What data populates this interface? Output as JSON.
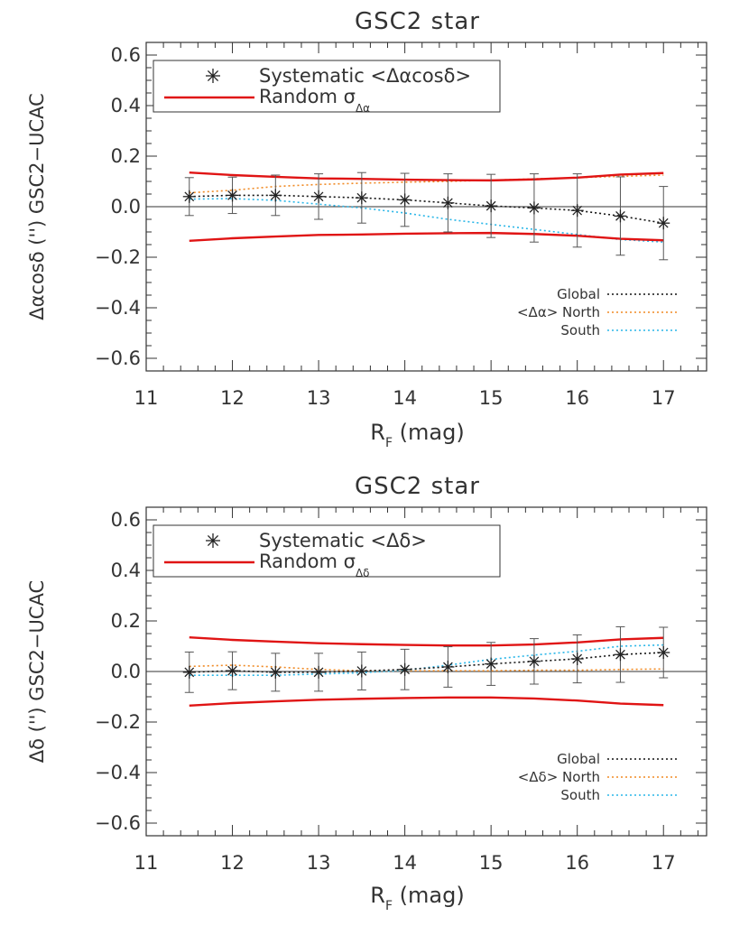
{
  "colors": {
    "frame": "#333333",
    "systematic": "#222222",
    "random": "#e01414",
    "global": "#111111",
    "north": "#f08a24",
    "south": "#29b6e8"
  },
  "chart_data": [
    {
      "type": "line",
      "title": "GSC2 star",
      "xlabel_main": "R",
      "xlabel_sub": "F",
      "xlabel_unit": "(mag)",
      "ylabel": "Δαcosδ ('') GSC2−UCAC",
      "xlim": [
        11,
        17.5
      ],
      "ylim": [
        -0.65,
        0.65
      ],
      "xticks": [
        "11",
        "12",
        "13",
        "14",
        "15",
        "16",
        "17"
      ],
      "yticks": [
        "0.6",
        "0.4",
        "0.2",
        "0.0",
        "−0.2",
        "−0.4",
        "−0.6"
      ],
      "legend_top": {
        "systematic_label": "Systematic <Δαcosδ>",
        "random_label": "Random σ",
        "random_sub": "Δα"
      },
      "legend_bottom": {
        "global": "Global",
        "north": "<Δα> North",
        "south": "South"
      },
      "x": [
        11.5,
        12.0,
        12.5,
        13.0,
        13.5,
        14.0,
        14.5,
        15.0,
        15.5,
        16.0,
        16.5,
        17.0
      ],
      "series": [
        {
          "name": "Systematic <Δαcosδ>",
          "values": [
            0.04,
            0.045,
            0.045,
            0.04,
            0.035,
            0.027,
            0.015,
            0.003,
            -0.005,
            -0.015,
            -0.037,
            -0.065
          ],
          "errors": [
            0.075,
            0.072,
            0.08,
            0.09,
            0.1,
            0.105,
            0.115,
            0.125,
            0.135,
            0.145,
            0.155,
            0.145
          ]
        },
        {
          "name": "Random σ",
          "values": [
            0.135,
            0.125,
            0.118,
            0.112,
            0.11,
            0.107,
            0.105,
            0.104,
            0.108,
            0.115,
            0.127,
            0.133
          ]
        },
        {
          "name": "Global",
          "values": [
            0.04,
            0.045,
            0.045,
            0.04,
            0.035,
            0.027,
            0.015,
            0.003,
            -0.005,
            -0.015,
            -0.037,
            -0.065
          ]
        },
        {
          "name": "<Δα> North",
          "values": [
            0.055,
            0.065,
            0.08,
            0.088,
            0.093,
            0.097,
            0.1,
            0.105,
            0.11,
            0.115,
            0.12,
            0.125
          ]
        },
        {
          "name": "South",
          "values": [
            0.03,
            0.032,
            0.025,
            0.01,
            -0.005,
            -0.025,
            -0.05,
            -0.07,
            -0.09,
            -0.11,
            -0.13,
            -0.14
          ]
        }
      ]
    },
    {
      "type": "line",
      "title": "GSC2 star",
      "xlabel_main": "R",
      "xlabel_sub": "F",
      "xlabel_unit": "(mag)",
      "ylabel": "Δδ ('') GSC2−UCAC",
      "xlim": [
        11,
        17.5
      ],
      "ylim": [
        -0.65,
        0.65
      ],
      "xticks": [
        "11",
        "12",
        "13",
        "14",
        "15",
        "16",
        "17"
      ],
      "yticks": [
        "0.6",
        "0.4",
        "0.2",
        "0.0",
        "−0.2",
        "−0.4",
        "−0.6"
      ],
      "legend_top": {
        "systematic_label": "Systematic <Δδ>",
        "random_label": "Random σ",
        "random_sub": "Δδ"
      },
      "legend_bottom": {
        "global": "Global",
        "north": "<Δδ> North",
        "south": "South"
      },
      "x": [
        11.5,
        12.0,
        12.5,
        13.0,
        13.5,
        14.0,
        14.5,
        15.0,
        15.5,
        16.0,
        16.5,
        17.0
      ],
      "series": [
        {
          "name": "Systematic <Δδ>",
          "values": [
            -0.003,
            0.003,
            -0.003,
            -0.003,
            0.002,
            0.008,
            0.018,
            0.03,
            0.04,
            0.05,
            0.067,
            0.075
          ],
          "errors": [
            0.08,
            0.075,
            0.075,
            0.075,
            0.075,
            0.08,
            0.08,
            0.085,
            0.09,
            0.095,
            0.11,
            0.1
          ]
        },
        {
          "name": "Random σ",
          "values": [
            0.135,
            0.125,
            0.118,
            0.112,
            0.108,
            0.105,
            0.103,
            0.103,
            0.107,
            0.115,
            0.127,
            0.133
          ]
        },
        {
          "name": "Global",
          "values": [
            -0.003,
            0.003,
            -0.003,
            -0.003,
            0.002,
            0.008,
            0.018,
            0.03,
            0.04,
            0.05,
            0.067,
            0.075
          ]
        },
        {
          "name": "<Δδ> North",
          "values": [
            0.02,
            0.025,
            0.018,
            0.008,
            0.003,
            0.003,
            0.003,
            0.003,
            0.005,
            0.005,
            0.008,
            0.01
          ]
        },
        {
          "name": "South",
          "values": [
            -0.015,
            -0.015,
            -0.015,
            -0.01,
            -0.005,
            0.005,
            0.025,
            0.048,
            0.065,
            0.08,
            0.1,
            0.105
          ]
        }
      ]
    }
  ]
}
